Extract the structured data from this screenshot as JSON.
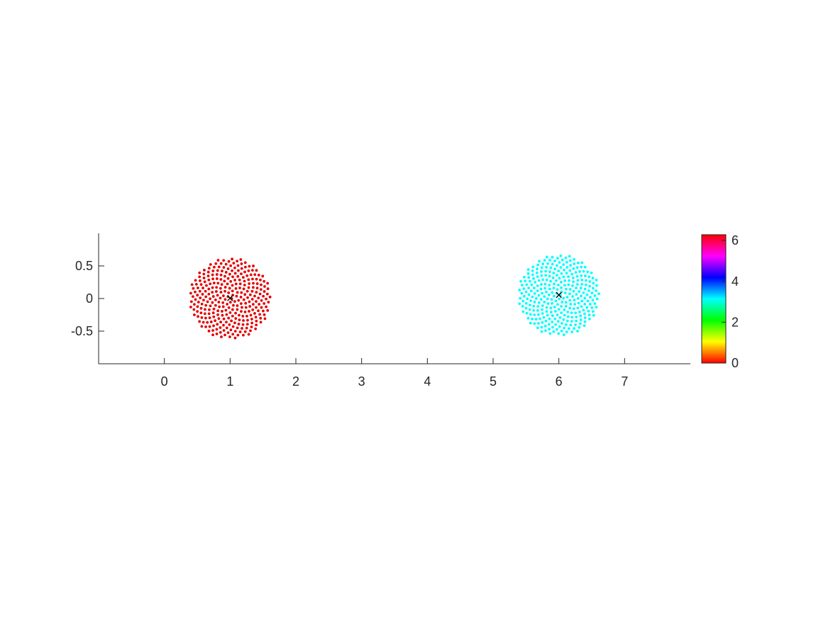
{
  "chart_data": {
    "type": "scatter",
    "title": "",
    "xlabel": "",
    "ylabel": "",
    "xlim": [
      -1,
      8
    ],
    "ylim": [
      -1,
      1
    ],
    "grid": false,
    "axis_equal": true,
    "x_ticks": [
      0,
      1,
      2,
      3,
      4,
      5,
      6,
      7
    ],
    "x_tick_labels": [
      "0",
      "1",
      "2",
      "3",
      "4",
      "5",
      "6",
      "7"
    ],
    "y_ticks": [
      0.5,
      0,
      -0.5
    ],
    "y_tick_labels": [
      "0.5",
      "0",
      "-0.5"
    ],
    "clusters": [
      {
        "center": [
          1,
          0
        ],
        "radius": 0.62,
        "color_value": 0,
        "color": "#e50000",
        "point_count": 300
      },
      {
        "center": [
          6,
          0.05
        ],
        "radius": 0.62,
        "color_value": 3.14,
        "color": "#00ffff",
        "point_count": 300
      }
    ],
    "center_markers": [
      {
        "x": 1,
        "y": 0,
        "symbol": "×",
        "color": "#000000"
      },
      {
        "x": 6,
        "y": 0.05,
        "symbol": "×",
        "color": "#000000"
      }
    ],
    "colorbar": {
      "colormap": "hsv",
      "range": [
        0,
        6.2832
      ],
      "ticks": [
        0,
        2,
        4,
        6
      ],
      "tick_labels": [
        "0",
        "2",
        "4",
        "6"
      ],
      "stops": [
        "#ff0000",
        "#ffff00",
        "#00ff00",
        "#00ffff",
        "#0000ff",
        "#ff00ff",
        "#ff0000"
      ]
    }
  }
}
